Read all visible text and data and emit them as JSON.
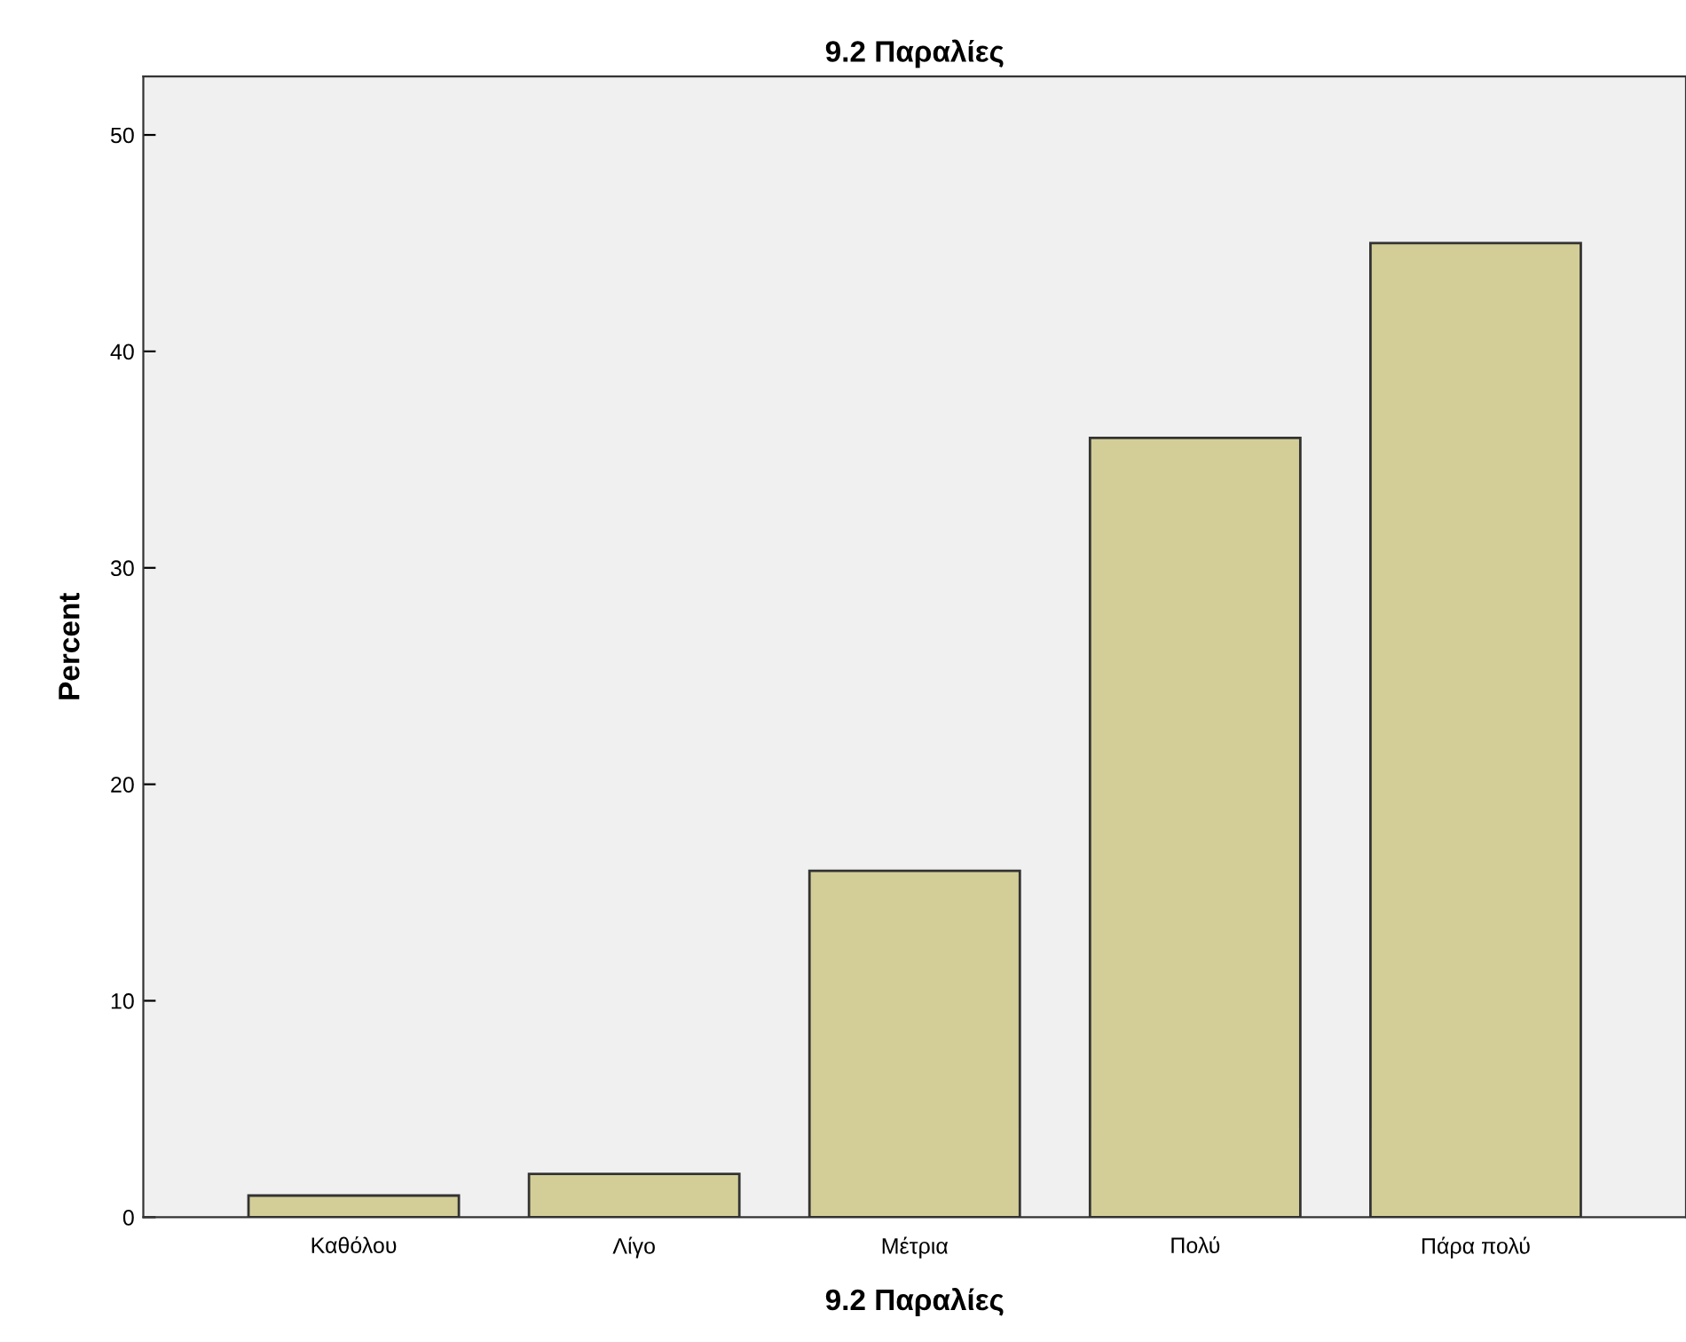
{
  "chart_data": {
    "type": "bar",
    "title": "9.2 Παραλίες",
    "xlabel": "9.2 Παραλίες",
    "ylabel": "Percent",
    "categories": [
      "Καθόλου",
      "Λίγο",
      "Μέτρια",
      "Πολύ",
      "Πάρα πολύ"
    ],
    "values": [
      1,
      2,
      16,
      36,
      45
    ],
    "color": "#d3ce97",
    "ylim": [
      0,
      52.7
    ],
    "yticks": [
      0,
      10,
      20,
      30,
      40,
      50
    ],
    "grid": false
  }
}
